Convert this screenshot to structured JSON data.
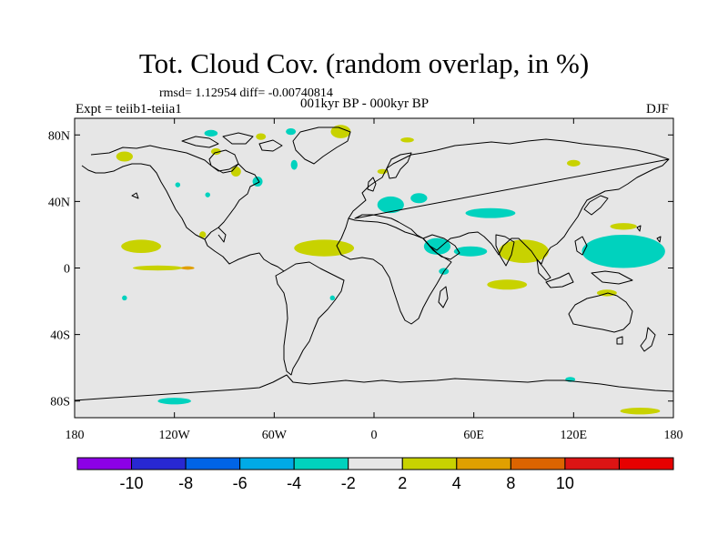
{
  "header": {
    "title": "Tot. Cloud Cov. (random overlap, in %)",
    "stats": "rmsd= 1.12954 diff= -0.00740814",
    "expt": "Expt = teiib1-teiia1",
    "period": "001kyr BP - 000kyr BP",
    "season": "DJF"
  },
  "map": {
    "lon_range": [
      -180,
      180
    ],
    "lat_range": [
      -90,
      90
    ],
    "background_color": "#e6e6e6",
    "x_ticks": [
      {
        "lon": -180,
        "label": "180"
      },
      {
        "lon": -120,
        "label": "120W"
      },
      {
        "lon": -60,
        "label": "60W"
      },
      {
        "lon": 0,
        "label": "0"
      },
      {
        "lon": 60,
        "label": "60E"
      },
      {
        "lon": 120,
        "label": "120E"
      },
      {
        "lon": 180,
        "label": "180"
      }
    ],
    "y_ticks": [
      {
        "lat": 80,
        "label": "80N"
      },
      {
        "lat": 40,
        "label": "40N"
      },
      {
        "lat": 0,
        "label": "0"
      },
      {
        "lat": -40,
        "label": "40S"
      },
      {
        "lat": -80,
        "label": "80S"
      }
    ],
    "anomaly_patches": [
      {
        "lon": -150,
        "lat": 67,
        "rlon": 5,
        "rlat": 3,
        "color": "#c8d200"
      },
      {
        "lon": -98,
        "lat": 81,
        "rlon": 4,
        "rlat": 2,
        "color": "#00d2be"
      },
      {
        "lon": -68,
        "lat": 79,
        "rlon": 3,
        "rlat": 2,
        "color": "#c8d200"
      },
      {
        "lon": -50,
        "lat": 82,
        "rlon": 3,
        "rlat": 2,
        "color": "#00d2be"
      },
      {
        "lon": -20,
        "lat": 82,
        "rlon": 6,
        "rlat": 4,
        "color": "#c8d200"
      },
      {
        "lon": 20,
        "lat": 77,
        "rlon": 4,
        "rlat": 1.5,
        "color": "#c8d200"
      },
      {
        "lon": -83,
        "lat": 58,
        "rlon": 3,
        "rlat": 3,
        "color": "#c8d200"
      },
      {
        "lon": -70,
        "lat": 52,
        "rlon": 3,
        "rlat": 3,
        "color": "#00d2be"
      },
      {
        "lon": -48,
        "lat": 62,
        "rlon": 2,
        "rlat": 3,
        "color": "#00d2be"
      },
      {
        "lon": -118,
        "lat": 50,
        "rlon": 1.5,
        "rlat": 1.5,
        "color": "#00d2be"
      },
      {
        "lon": -100,
        "lat": 44,
        "rlon": 1.5,
        "rlat": 1.5,
        "color": "#00d2be"
      },
      {
        "lon": 5,
        "lat": 58,
        "rlon": 3,
        "rlat": 1.5,
        "color": "#c8d200"
      },
      {
        "lon": 120,
        "lat": 63,
        "rlon": 4,
        "rlat": 2,
        "color": "#c8d200"
      },
      {
        "lon": 10,
        "lat": 38,
        "rlon": 8,
        "rlat": 5,
        "color": "#00d2be"
      },
      {
        "lon": 27,
        "lat": 42,
        "rlon": 5,
        "rlat": 3,
        "color": "#00d2be"
      },
      {
        "lon": 70,
        "lat": 33,
        "rlon": 15,
        "rlat": 3,
        "color": "#00d2be"
      },
      {
        "lon": -140,
        "lat": 13,
        "rlon": 12,
        "rlat": 4,
        "color": "#c8d200"
      },
      {
        "lon": -130,
        "lat": 0,
        "rlon": 15,
        "rlat": 1.5,
        "color": "#c8d200"
      },
      {
        "lon": -112,
        "lat": 0,
        "rlon": 4,
        "rlat": 1,
        "color": "#e0a000"
      },
      {
        "lon": -30,
        "lat": 12,
        "rlon": 18,
        "rlat": 5,
        "color": "#c8d200"
      },
      {
        "lon": -103,
        "lat": 20,
        "rlon": 2,
        "rlat": 2,
        "color": "#c8d200"
      },
      {
        "lon": 38,
        "lat": 13,
        "rlon": 8,
        "rlat": 5,
        "color": "#00d2be"
      },
      {
        "lon": 58,
        "lat": 10,
        "rlon": 10,
        "rlat": 3,
        "color": "#00d2be"
      },
      {
        "lon": 42,
        "lat": -2,
        "rlon": 3,
        "rlat": 2,
        "color": "#00d2be"
      },
      {
        "lon": 90,
        "lat": 10,
        "rlon": 15,
        "rlat": 7,
        "color": "#c8d200"
      },
      {
        "lon": 80,
        "lat": -10,
        "rlon": 12,
        "rlat": 3,
        "color": "#c8d200"
      },
      {
        "lon": 150,
        "lat": 10,
        "rlon": 25,
        "rlat": 10,
        "color": "#00d2be"
      },
      {
        "lon": 150,
        "lat": 25,
        "rlon": 8,
        "rlat": 2,
        "color": "#c8d200"
      },
      {
        "lon": 140,
        "lat": -15,
        "rlon": 6,
        "rlat": 2,
        "color": "#c8d200"
      },
      {
        "lon": -150,
        "lat": -18,
        "rlon": 1.5,
        "rlat": 1.5,
        "color": "#00d2be"
      },
      {
        "lon": -25,
        "lat": -18,
        "rlon": 1.5,
        "rlat": 1.5,
        "color": "#00d2be"
      },
      {
        "lon": 118,
        "lat": -67,
        "rlon": 3,
        "rlat": 1.5,
        "color": "#00d2be"
      },
      {
        "lon": -120,
        "lat": -80,
        "rlon": 10,
        "rlat": 2,
        "color": "#00d2be"
      },
      {
        "lon": 160,
        "lat": -86,
        "rlon": 12,
        "rlat": 2,
        "color": "#c8d200"
      },
      {
        "lon": -95,
        "lat": 70,
        "rlon": 3,
        "rlat": 2,
        "color": "#c8d200"
      }
    ]
  },
  "colorbar": {
    "colors": [
      "#8c00e6",
      "#2828d2",
      "#0064e6",
      "#00aae6",
      "#00d2be",
      "#e6e6e6",
      "#c8d200",
      "#e0a000",
      "#dc6400",
      "#dc1414",
      "#e60000"
    ],
    "labels": [
      "-10",
      "-8",
      "-6",
      "-4",
      "-2",
      "2",
      "4",
      "8",
      "10"
    ]
  }
}
